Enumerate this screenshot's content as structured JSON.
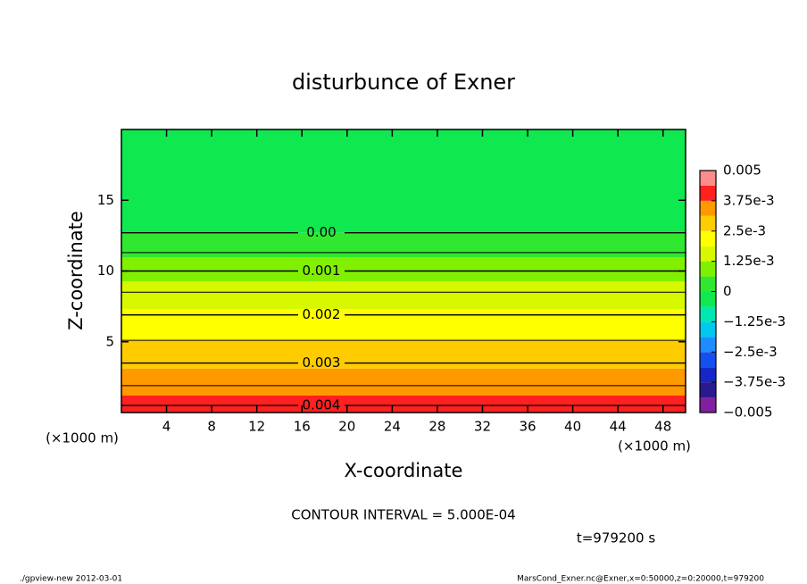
{
  "chart_data": {
    "type": "contour",
    "title": "disturbunce of Exner",
    "xlabel": "X-coordinate",
    "ylabel": "Z-coordinate",
    "x_unit_label": "(×1000 m)",
    "y_unit_label": "(×1000 m)",
    "xlim": [
      0,
      50
    ],
    "xticks": [
      4,
      8,
      12,
      16,
      20,
      24,
      28,
      32,
      36,
      40,
      44,
      48
    ],
    "ylim": [
      0,
      20
    ],
    "yticks": [
      5,
      10,
      15
    ],
    "profile_z": [
      0,
      0.5,
      1.9,
      3.5,
      5.1,
      6.9,
      8.5,
      10.0,
      11.3,
      12.7,
      20
    ],
    "profile_values": [
      0.0042,
      0.004,
      0.0035,
      0.003,
      0.0025,
      0.002,
      0.0015,
      0.001,
      0.0005,
      0,
      -0.0003
    ],
    "contour_levels": [
      0,
      0.0005,
      0.001,
      0.0015,
      0.002,
      0.0025,
      0.003,
      0.0035,
      0.004
    ],
    "contour_labels": [
      "0.00",
      null,
      "0.001",
      null,
      "0.002",
      null,
      "0.003",
      null,
      "0.004"
    ],
    "levels": [
      -0.005,
      -0.004375,
      -0.00375,
      -0.003125,
      -0.0025,
      -0.001875,
      -0.00125,
      -0.000625,
      0,
      0.000625,
      0.00125,
      0.001875,
      0.0025,
      0.003125,
      0.00375,
      0.004375,
      0.005
    ],
    "colors": [
      "#8020a0",
      "#2a1a90",
      "#1428c8",
      "#1450f0",
      "#1e8cff",
      "#00c8f0",
      "#00e8b0",
      "#10e850",
      "#30e830",
      "#80f000",
      "#d8f800",
      "#ffff00",
      "#ffcc00",
      "#ff9900",
      "#ff2020",
      "#ff8c8c"
    ],
    "clim": [
      -0.005,
      0.005
    ],
    "cticks": [
      0.005,
      {
        "value": 0.00375,
        "label": "3.75e-3"
      },
      {
        "value": 0.0025,
        "label": "2.5e-3"
      },
      {
        "value": 0.00125,
        "label": "1.25e-3"
      },
      0,
      {
        "value": -0.00125,
        "label": "−1.25e-3"
      },
      {
        "value": -0.0025,
        "label": "−2.5e-3"
      },
      {
        "value": -0.00375,
        "label": "−3.75e-3"
      },
      {
        "value": -0.005,
        "label": "−0.005"
      }
    ],
    "contour_interval": "CONTOUR INTERVAL = 5.000E-04",
    "time_label": "t=979200 s",
    "footer_left": "./gpview-new  2012-03-01",
    "footer_right": "MarsCond_Exner.nc@Exner,x=0:50000,z=0:20000,t=979200"
  }
}
